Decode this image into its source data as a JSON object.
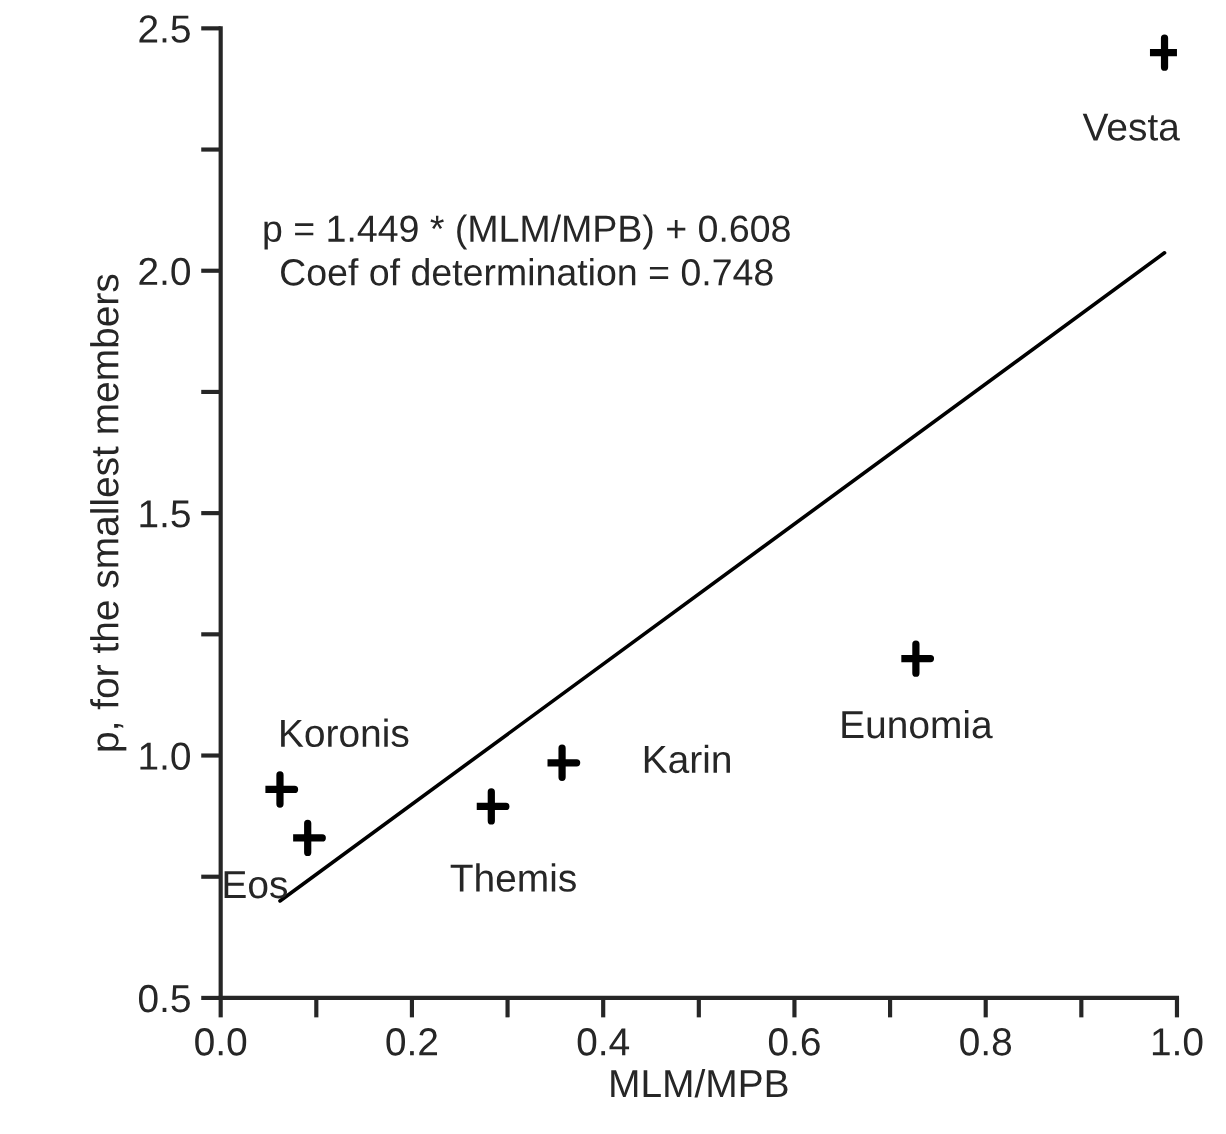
{
  "chart_data": {
    "type": "scatter",
    "xlabel": "MLM/MPB",
    "ylabel": "p, for the smallest members",
    "x": [
      0.062,
      0.091,
      0.283,
      0.357,
      0.727,
      0.987
    ],
    "series": [
      {
        "type": "scatter",
        "color": "#000000",
        "marker": "cross",
        "values": [
          0.93,
          0.83,
          0.895,
          0.985,
          1.2,
          2.45
        ]
      },
      {
        "type": "line",
        "color": "#000000",
        "line_style": "solid",
        "x": [
          0.062,
          0.987
        ],
        "values": [
          0.7,
          2.037
        ]
      }
    ],
    "xlim": [
      0,
      1.0
    ],
    "ylim": [
      0.5,
      2.5
    ],
    "xticks": [
      {
        "value": 0,
        "label": "0.0"
      },
      {
        "value": 0.1,
        "label": null
      },
      {
        "value": 0.2,
        "label": "0.2"
      },
      {
        "value": 0.3,
        "label": null
      },
      {
        "value": 0.4,
        "label": "0.4"
      },
      {
        "value": 0.5,
        "label": null
      },
      {
        "value": 0.6,
        "label": "0.6"
      },
      {
        "value": 0.7,
        "label": null
      },
      {
        "value": 0.8,
        "label": "0.8"
      },
      {
        "value": 0.9,
        "label": null
      },
      {
        "value": 1.0,
        "label": "1.0"
      }
    ],
    "yticks": [
      0.5,
      {
        "value": 0.75,
        "label": null
      },
      {
        "value": 1.0,
        "label": "1.0"
      },
      {
        "value": 1.25,
        "label": null
      },
      1.5,
      {
        "value": 1.75,
        "label": null
      },
      {
        "value": 2.0,
        "label": "2.0"
      },
      {
        "value": 2.25,
        "label": null
      },
      2.5
    ],
    "grid": false,
    "legend": false,
    "annotations": [
      "p = 1.449 * (MLM/MPB) + 0.608",
      "Coef of determination = 0.748",
      {
        "text": "Koronis",
        "x": 0.062,
        "y": 0.93
      },
      {
        "text": "Eos",
        "x": 0.091,
        "y": 0.83
      },
      {
        "text": "Themis",
        "x": 0.283,
        "y": 0.895
      },
      {
        "text": "Karin",
        "x": 0.357,
        "y": 0.985
      },
      {
        "text": "Eunomia",
        "x": 0.727,
        "y": 1.2
      },
      {
        "text": "Vesta",
        "x": 0.987,
        "y": 2.45
      }
    ]
  }
}
